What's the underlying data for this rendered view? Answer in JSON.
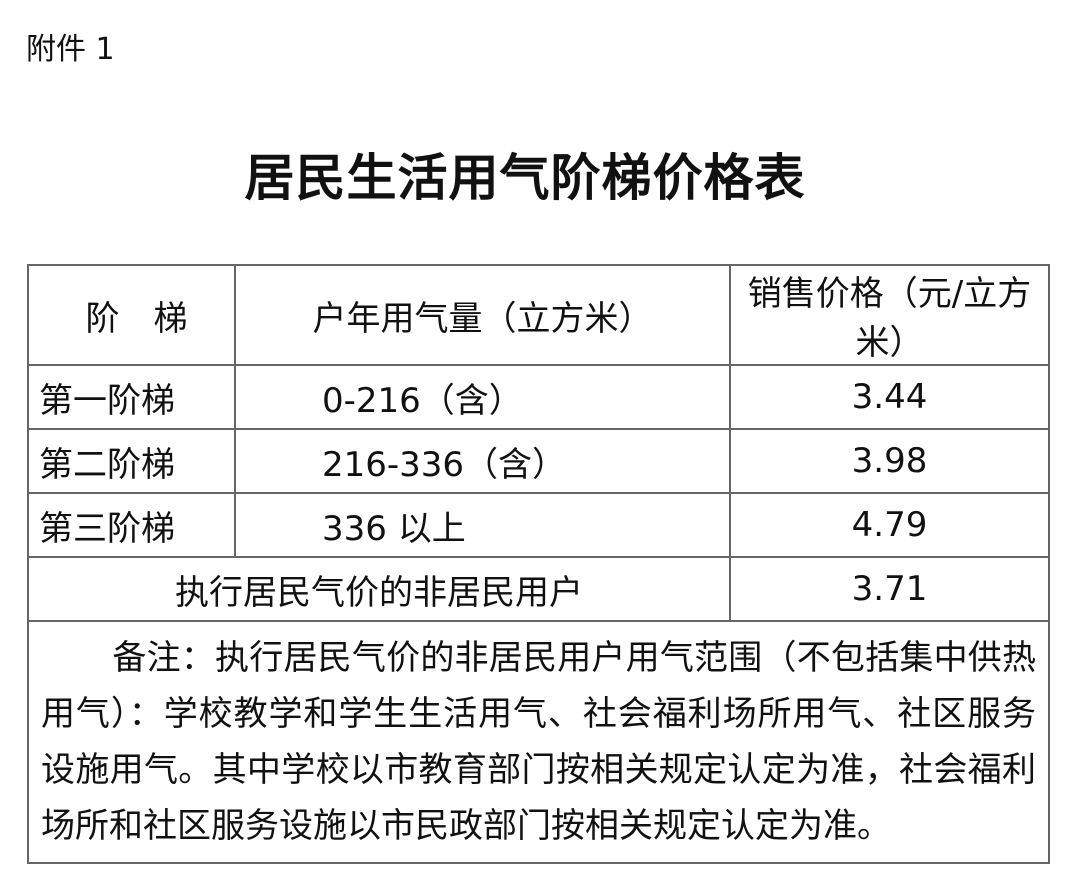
{
  "attachment_label": "附件 1",
  "title": "居民生活用气阶梯价格表",
  "table": {
    "headers": [
      "阶　梯",
      "户年用气量（立方米）",
      "销售价格（元/立方米）"
    ],
    "rows": [
      {
        "tier": "第一阶梯",
        "range": "0-216（含）",
        "price": "3.44"
      },
      {
        "tier": "第二阶梯",
        "range": "216-336（含）",
        "price": "3.98"
      },
      {
        "tier": "第三阶梯",
        "range": "336 以上",
        "price": "4.79"
      }
    ],
    "special_row": {
      "label": "执行居民气价的非居民用户",
      "price": "3.71"
    },
    "note": "备注：执行居民气价的非居民用户用气范围（不包括集中供热用气）：学校教学和学生生活用气、社会福利场所用气、社区服务设施用气。其中学校以市教育部门按相关规定认定为准，社会福利场所和社区服务设施以市民政部门按相关规定认定为准。"
  }
}
